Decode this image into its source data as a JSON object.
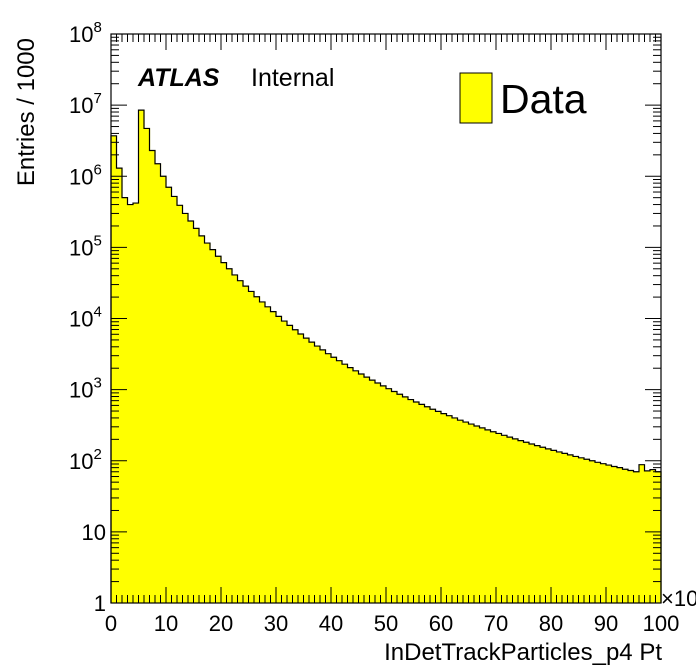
{
  "chart_data": {
    "type": "histogram",
    "title": "",
    "xlabel": "InDetTrackParticles_p4 Pt",
    "ylabel": "Entries / 1000",
    "x_multiplier_label": "×10",
    "y_scale": "log",
    "xlim": [
      0,
      100
    ],
    "ylim": [
      1,
      100000000
    ],
    "x_ticks": [
      "0",
      "10",
      "20",
      "30",
      "40",
      "50",
      "60",
      "70",
      "80",
      "90",
      "100"
    ],
    "y_ticks": [
      {
        "base": "1",
        "exp": ""
      },
      {
        "base": "10",
        "exp": ""
      },
      {
        "base": "10",
        "exp": "2"
      },
      {
        "base": "10",
        "exp": "3"
      },
      {
        "base": "10",
        "exp": "4"
      },
      {
        "base": "10",
        "exp": "5"
      },
      {
        "base": "10",
        "exp": "6"
      },
      {
        "base": "10",
        "exp": "7"
      },
      {
        "base": "10",
        "exp": "8"
      }
    ],
    "legend": {
      "label": "Data",
      "placement": "top-right"
    },
    "annotation": {
      "atlas": "ATLAS",
      "status": "Internal"
    },
    "series": [
      {
        "name": "Data",
        "bin_width": 1,
        "x_start": 0,
        "values": [
          3700000,
          1300000,
          500000,
          400000,
          420000,
          8500000,
          4700000,
          2300000,
          1500000,
          1000000,
          700000,
          520000,
          390000,
          300000,
          235000,
          185000,
          145000,
          115000,
          93000,
          75000,
          61000,
          50000,
          41000,
          34000,
          28500,
          24000,
          20200,
          17100,
          14600,
          12500,
          10700,
          9200,
          8000,
          6950,
          6050,
          5300,
          4650,
          4100,
          3620,
          3200,
          2850,
          2550,
          2280,
          2040,
          1840,
          1660,
          1500,
          1360,
          1240,
          1130,
          1030,
          940,
          860,
          790,
          725,
          670,
          620,
          575,
          530,
          495,
          460,
          430,
          400,
          372,
          350,
          328,
          308,
          290,
          272,
          256,
          242,
          228,
          215,
          203,
          192,
          182,
          172,
          163,
          155,
          147,
          140,
          133,
          127,
          121,
          115,
          110,
          105,
          100,
          95,
          91,
          87,
          83,
          80,
          76,
          73,
          70,
          88,
          72,
          75,
          70
        ],
        "fill": "#ffff00",
        "line": "#000000"
      }
    ]
  }
}
